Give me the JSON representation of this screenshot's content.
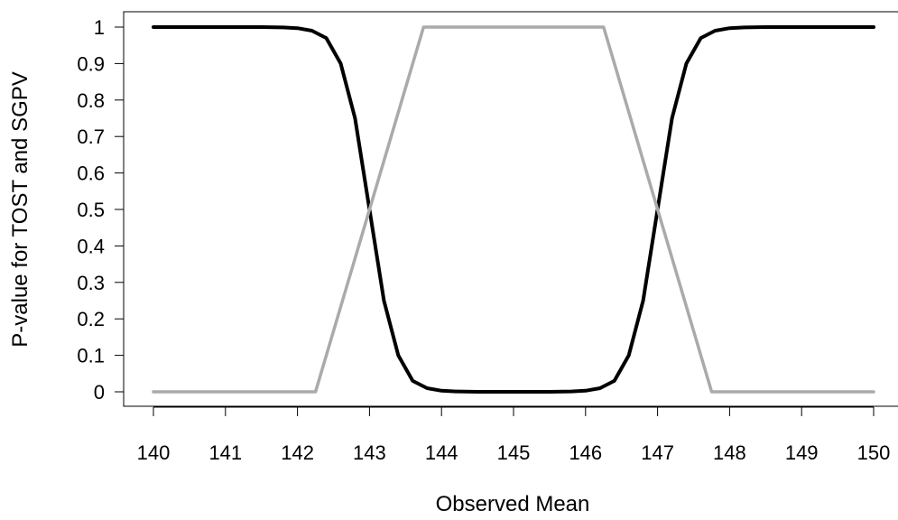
{
  "chart_data": {
    "type": "line",
    "title": "",
    "xlabel": "Observed Mean",
    "ylabel": "P-value for TOST and SGPV",
    "xlim": [
      140,
      150
    ],
    "ylim": [
      0,
      1
    ],
    "x_ticks": [
      140,
      141,
      142,
      143,
      144,
      145,
      146,
      147,
      148,
      149,
      150
    ],
    "y_ticks": [
      0,
      0.1,
      0.2,
      0.3,
      0.4,
      0.5,
      0.6,
      0.7,
      0.8,
      0.9,
      1
    ],
    "grid": false,
    "legend": "none",
    "series": [
      {
        "color": "#000000",
        "x": [
          140,
          141,
          141.5,
          141.8,
          142,
          142.2,
          142.4,
          142.6,
          142.8,
          143,
          143.2,
          143.4,
          143.6,
          143.8,
          144,
          144.2,
          144.5,
          145,
          145.5,
          145.8,
          146,
          146.2,
          146.4,
          146.6,
          146.8,
          147,
          147.2,
          147.4,
          147.6,
          147.8,
          148,
          148.2,
          148.5,
          149,
          150
        ],
        "y": [
          1,
          1,
          1,
          0.999,
          0.997,
          0.99,
          0.97,
          0.9,
          0.75,
          0.5,
          0.25,
          0.1,
          0.03,
          0.01,
          0.003,
          0.001,
          0,
          0,
          0,
          0.001,
          0.003,
          0.01,
          0.03,
          0.1,
          0.25,
          0.5,
          0.75,
          0.9,
          0.97,
          0.99,
          0.997,
          0.999,
          1,
          1,
          1
        ]
      },
      {
        "color": "#aaaaaa",
        "x": [
          140,
          142.25,
          143.75,
          146.25,
          147.75,
          150
        ],
        "y": [
          0,
          0,
          1,
          1,
          0,
          0
        ]
      }
    ]
  }
}
